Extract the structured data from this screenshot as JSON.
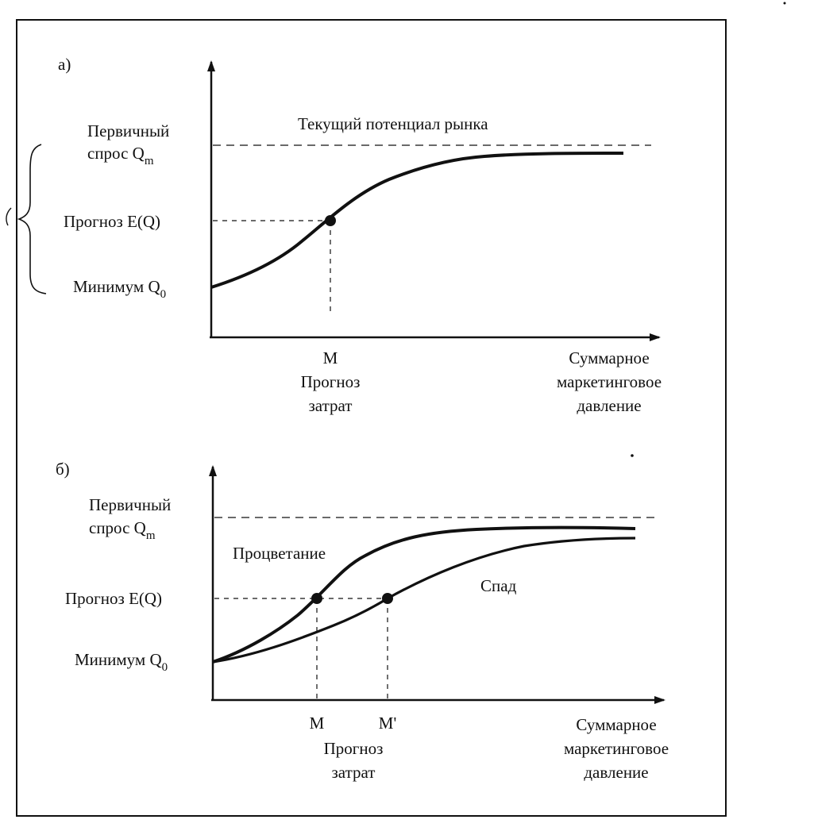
{
  "panel_a": {
    "label": "а)",
    "curve_label": "Текущий потенциал рынка",
    "y_labels": {
      "primary_line1": "Первичный",
      "primary_line2": "спрос Q",
      "primary_sub": "m",
      "forecast": "Прогноз E(Q)",
      "minimum": "Минимум Q",
      "minimum_sub": "0"
    },
    "x_labels": {
      "point": "М",
      "point_caption_1": "Прогноз",
      "point_caption_2": "затрат",
      "axis_1": "Суммарное",
      "axis_2": "маркетинговое",
      "axis_3": "давление"
    }
  },
  "panel_b": {
    "label": "б)",
    "curve_up": "Процветание",
    "curve_down": "Спад",
    "y_labels": {
      "primary_line1": "Первичный",
      "primary_line2": "спрос Q",
      "primary_sub": "m",
      "forecast": "Прогноз E(Q)",
      "minimum": "Минимум Q",
      "minimum_sub": "0"
    },
    "x_labels": {
      "point_1": "М",
      "point_2": "М'",
      "point_caption_1": "Прогноз",
      "point_caption_2": "затрат",
      "axis_1": "Суммарное",
      "axis_2": "маркетинговое",
      "axis_3": "давление"
    }
  },
  "colors": {
    "ink": "#111111",
    "paper": "#ffffff"
  }
}
